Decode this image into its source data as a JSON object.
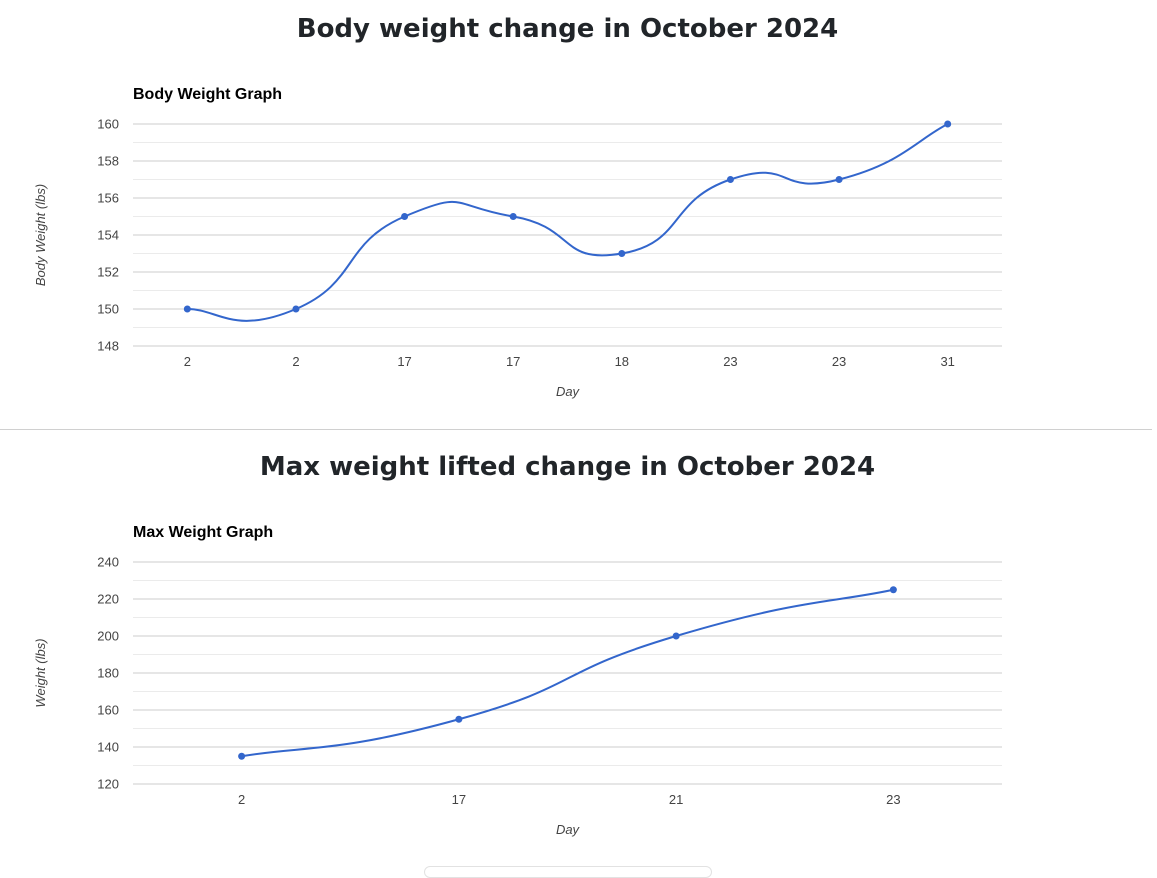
{
  "sections": [
    {
      "title": "Body weight change in October 2024"
    },
    {
      "title": "Max weight lifted change in October 2024"
    }
  ],
  "colors": {
    "line": "#3366cc",
    "grid": "#cccccc",
    "minor_grid": "#ebebeb",
    "axis_text": "#444444",
    "chart_title": "#000000"
  },
  "chart_data": [
    {
      "type": "line",
      "title": "Body Weight Graph",
      "xlabel": "Day",
      "ylabel": "Body Weight (lbs)",
      "categories": [
        "2",
        "2",
        "17",
        "17",
        "18",
        "23",
        "23",
        "31"
      ],
      "series": [
        {
          "values": [
            150,
            150,
            155,
            155,
            153,
            157,
            157,
            160
          ]
        }
      ],
      "ylim": [
        148,
        160
      ],
      "yticks": [
        148,
        150,
        152,
        154,
        156,
        158,
        160
      ],
      "curve": "smooth",
      "points": true,
      "grid": true,
      "legend": "none"
    },
    {
      "type": "line",
      "title": "Max Weight Graph",
      "xlabel": "Day",
      "ylabel": "Weight (lbs)",
      "categories": [
        "2",
        "17",
        "21",
        "23"
      ],
      "series": [
        {
          "values": [
            135,
            155,
            200,
            225
          ]
        }
      ],
      "ylim": [
        120,
        240
      ],
      "yticks": [
        120,
        140,
        160,
        180,
        200,
        220,
        240
      ],
      "curve": "smooth",
      "points": true,
      "grid": true,
      "legend": "none"
    }
  ]
}
